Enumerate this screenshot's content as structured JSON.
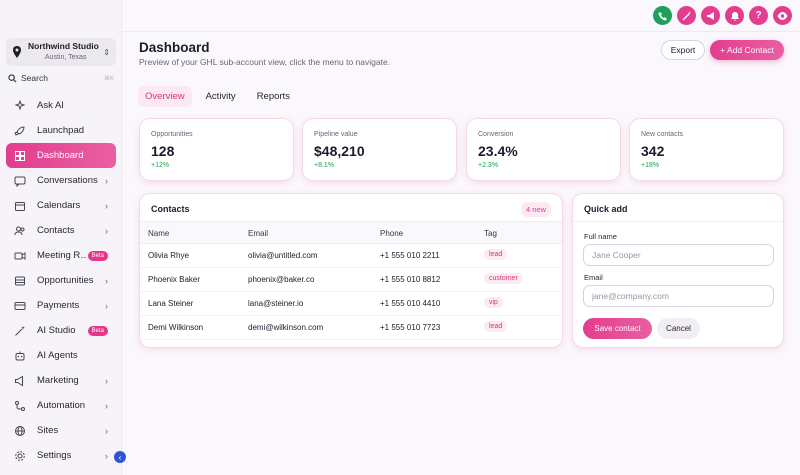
{
  "location": {
    "name": "Northwind Studio",
    "city": "Austin, Texas"
  },
  "search": {
    "label": "Search",
    "shortcut": "⌘K"
  },
  "nav": [
    {
      "label": "Ask AI",
      "icon": "sparkles-icon",
      "chevron": false,
      "badge": "",
      "active": false
    },
    {
      "label": "Launchpad",
      "icon": "rocket-icon",
      "chevron": false,
      "badge": "",
      "active": false
    },
    {
      "label": "Dashboard",
      "icon": "grid-icon",
      "chevron": false,
      "badge": "",
      "active": true
    },
    {
      "label": "Conversations",
      "icon": "chat-icon",
      "chevron": true,
      "badge": "",
      "active": false
    },
    {
      "label": "Calendars",
      "icon": "calendar-icon",
      "chevron": true,
      "badge": "",
      "active": false
    },
    {
      "label": "Contacts",
      "icon": "users-icon",
      "chevron": true,
      "badge": "",
      "active": false
    },
    {
      "label": "Meeting R…",
      "icon": "video-icon",
      "chevron": false,
      "badge": "Beta",
      "active": false
    },
    {
      "label": "Opportunities",
      "icon": "filter-icon",
      "chevron": true,
      "badge": "",
      "active": false
    },
    {
      "label": "Payments",
      "icon": "card-icon",
      "chevron": true,
      "badge": "",
      "active": false
    },
    {
      "label": "AI Studio",
      "icon": "magic-icon",
      "chevron": false,
      "badge": "Beta",
      "active": false
    },
    {
      "label": "AI Agents",
      "icon": "robot-icon",
      "chevron": false,
      "badge": "",
      "active": false
    },
    {
      "label": "Marketing",
      "icon": "megaphone-icon",
      "chevron": true,
      "badge": "",
      "active": false
    },
    {
      "label": "Automation",
      "icon": "flow-icon",
      "chevron": true,
      "badge": "",
      "active": false
    },
    {
      "label": "Sites",
      "icon": "globe-icon",
      "chevron": true,
      "badge": "",
      "active": false
    },
    {
      "label": "Settings",
      "icon": "gear-icon",
      "chevron": true,
      "badge": "",
      "active": false
    }
  ],
  "top_icons": [
    "phone-icon",
    "magic-wand-icon",
    "megaphone-icon",
    "bell-icon",
    "help-icon",
    "eye-icon"
  ],
  "header": {
    "title": "Dashboard",
    "subtitle": "Preview of your GHL sub-account view, click the menu to navigate.",
    "export_label": "Export",
    "add_contact_label": "+ Add Contact"
  },
  "tabs": [
    {
      "label": "Overview",
      "active": true
    },
    {
      "label": "Activity",
      "active": false
    },
    {
      "label": "Reports",
      "active": false
    }
  ],
  "stats": [
    {
      "label": "Opportunities",
      "value": "128",
      "delta": "+12%"
    },
    {
      "label": "Pipeline value",
      "value": "$48,210",
      "delta": "+8.1%"
    },
    {
      "label": "Conversion",
      "value": "23.4%",
      "delta": "+2.3%"
    },
    {
      "label": "New contacts",
      "value": "342",
      "delta": "+18%"
    }
  ],
  "contacts": {
    "title": "Contacts",
    "new_badge": "4 new",
    "columns": [
      "Name",
      "Email",
      "Phone",
      "Tag"
    ],
    "rows": [
      {
        "name": "Olivia Rhye",
        "email": "olivia@untitled.com",
        "phone": "+1 555 010 2211",
        "tag": "lead"
      },
      {
        "name": "Phoenix Baker",
        "email": "phoenix@baker.co",
        "phone": "+1 555 010 8812",
        "tag": "customer"
      },
      {
        "name": "Lana Steiner",
        "email": "lana@steiner.io",
        "phone": "+1 555 010 4410",
        "tag": "vip"
      },
      {
        "name": "Demi Wilkinson",
        "email": "demi@wilkinson.com",
        "phone": "+1 555 010 7723",
        "tag": "lead"
      }
    ]
  },
  "quick_add": {
    "title": "Quick add",
    "full_name_label": "Full name",
    "full_name_placeholder": "Jane Cooper",
    "email_label": "Email",
    "email_placeholder": "jane@company.com",
    "save_label": "Save contact",
    "cancel_label": "Cancel"
  },
  "colors": {
    "accent": "#e23d8f",
    "success": "#17a34a",
    "phone_green": "#1fa05a",
    "collapse_blue": "#2d55d6"
  }
}
